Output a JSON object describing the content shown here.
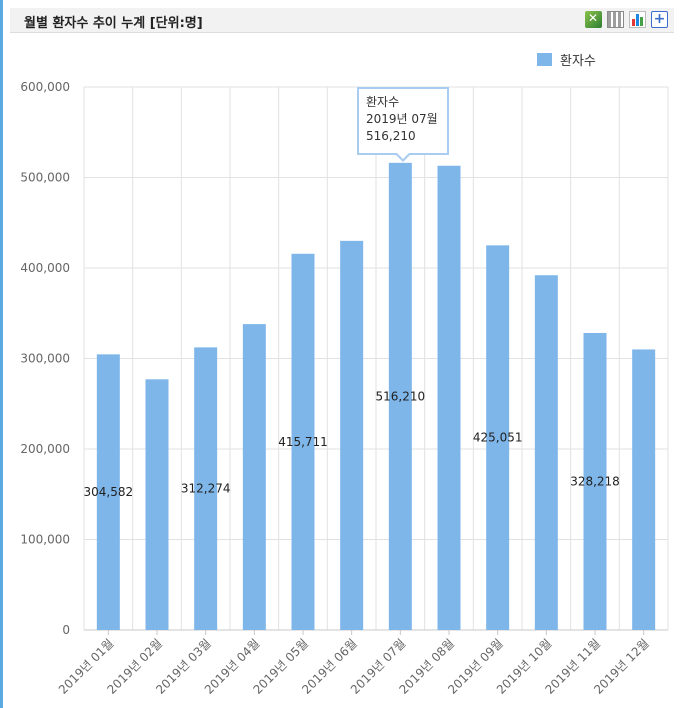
{
  "panel": {
    "title": "월별 환자수 추이 누계 [단위:명]",
    "toolbar": [
      {
        "icon": "excel-export-icon"
      },
      {
        "icon": "grid-view-icon"
      },
      {
        "icon": "chart-view-icon"
      },
      {
        "icon": "plus-icon"
      }
    ]
  },
  "colors": {
    "bar": "#7eb6ea",
    "grid": "#e2e2e2",
    "accent": "#5aa9e0"
  },
  "tooltip": {
    "series": "환자수",
    "category": "2019년 07월",
    "value": "516,210"
  },
  "chart_data": {
    "type": "bar",
    "title": "월별 환자수 추이 누계 [단위:명]",
    "xlabel": "",
    "ylabel": "",
    "ylim": [
      0,
      600000
    ],
    "yticks": [
      "0",
      "100,000",
      "200,000",
      "300,000",
      "400,000",
      "500,000",
      "600,000"
    ],
    "grid": true,
    "legend_position": "top-right",
    "categories": [
      "2019년 01월",
      "2019년 02월",
      "2019년 03월",
      "2019년 04월",
      "2019년 05월",
      "2019년 06월",
      "2019년 07월",
      "2019년 08월",
      "2019년 09월",
      "2019년 10월",
      "2019년 11월",
      "2019년 12월"
    ],
    "series": [
      {
        "name": "환자수",
        "values": [
          304582,
          277000,
          312274,
          338000,
          415711,
          430000,
          516210,
          513000,
          425051,
          392000,
          328218,
          310000
        ]
      }
    ],
    "data_labels": [
      "304,582",
      "",
      "312,274",
      "",
      "415,711",
      "",
      "516,210",
      "",
      "425,051",
      "",
      "328,218",
      ""
    ]
  }
}
